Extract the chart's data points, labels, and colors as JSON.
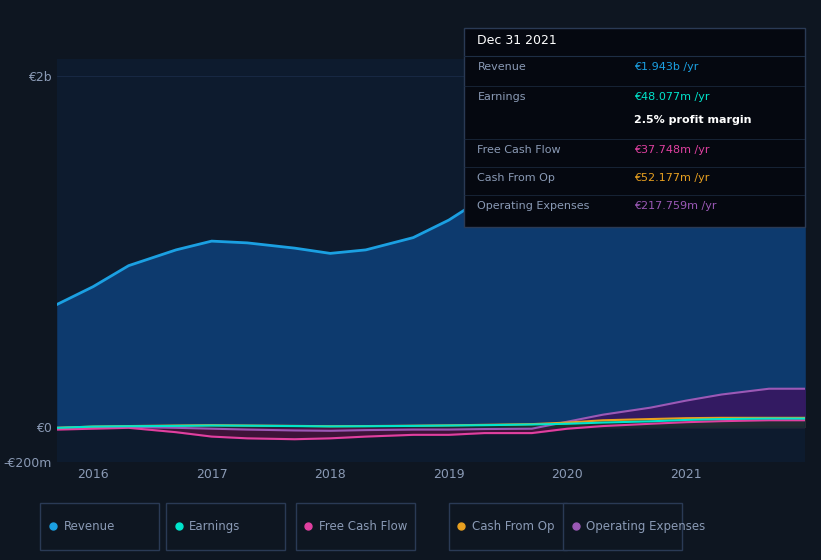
{
  "bg_color": "#0e1621",
  "plot_bg_color": "#0d1b2e",
  "grid_color": "#1e3050",
  "text_color": "#8a9ab5",
  "title_color": "#ffffff",
  "years": [
    2015.7,
    2016.0,
    2016.3,
    2016.7,
    2017.0,
    2017.3,
    2017.7,
    2018.0,
    2018.3,
    2018.7,
    2019.0,
    2019.3,
    2019.7,
    2020.0,
    2020.3,
    2020.7,
    2021.0,
    2021.3,
    2021.7,
    2022.0
  ],
  "revenue": [
    700,
    800,
    920,
    1010,
    1060,
    1050,
    1020,
    990,
    1010,
    1080,
    1180,
    1310,
    1450,
    1580,
    1680,
    1780,
    1870,
    1920,
    1943,
    1943
  ],
  "earnings": [
    -5,
    2,
    4,
    6,
    8,
    7,
    5,
    3,
    4,
    6,
    8,
    10,
    14,
    18,
    25,
    32,
    40,
    45,
    48,
    48
  ],
  "free_cash_flow": [
    -15,
    -10,
    -5,
    -30,
    -55,
    -65,
    -70,
    -65,
    -55,
    -45,
    -45,
    -35,
    -35,
    -10,
    5,
    18,
    27,
    33,
    38,
    38
  ],
  "cash_from_op": [
    -5,
    2,
    5,
    8,
    10,
    8,
    6,
    4,
    5,
    7,
    9,
    12,
    16,
    25,
    38,
    45,
    50,
    52,
    52,
    52
  ],
  "operating_expenses": [
    -5,
    -3,
    0,
    -5,
    -10,
    -15,
    -20,
    -22,
    -18,
    -15,
    -15,
    -12,
    -10,
    30,
    70,
    110,
    150,
    185,
    218,
    218
  ],
  "x_ticks": [
    2016,
    2017,
    2018,
    2019,
    2020,
    2021
  ],
  "xlim_min": 2015.7,
  "xlim_max": 2022.0,
  "ylim_min": -200,
  "ylim_max": 2100,
  "yticks": [
    -200,
    0,
    2000
  ],
  "ytick_labels": [
    "-€200m",
    "€0",
    "€2b"
  ],
  "revenue_color": "#1ba0e2",
  "earnings_color": "#00e5cc",
  "fcf_color": "#e040a0",
  "cashop_color": "#e8a020",
  "opex_color": "#9b59b6",
  "revenue_fill": "#0d3a6e",
  "info_box": {
    "title": "Dec 31 2021",
    "revenue_label": "Revenue",
    "revenue_value": "€1.943b /yr",
    "earnings_label": "Earnings",
    "earnings_value": "€48.077m /yr",
    "profit_margin": "2.5% profit margin",
    "fcf_label": "Free Cash Flow",
    "fcf_value": "€37.748m /yr",
    "cashop_label": "Cash From Op",
    "cashop_value": "€52.177m /yr",
    "opex_label": "Operating Expenses",
    "opex_value": "€217.759m /yr"
  },
  "legend_labels": [
    "Revenue",
    "Earnings",
    "Free Cash Flow",
    "Cash From Op",
    "Operating Expenses"
  ],
  "legend_colors": [
    "#1ba0e2",
    "#00e5cc",
    "#e040a0",
    "#e8a020",
    "#9b59b6"
  ]
}
